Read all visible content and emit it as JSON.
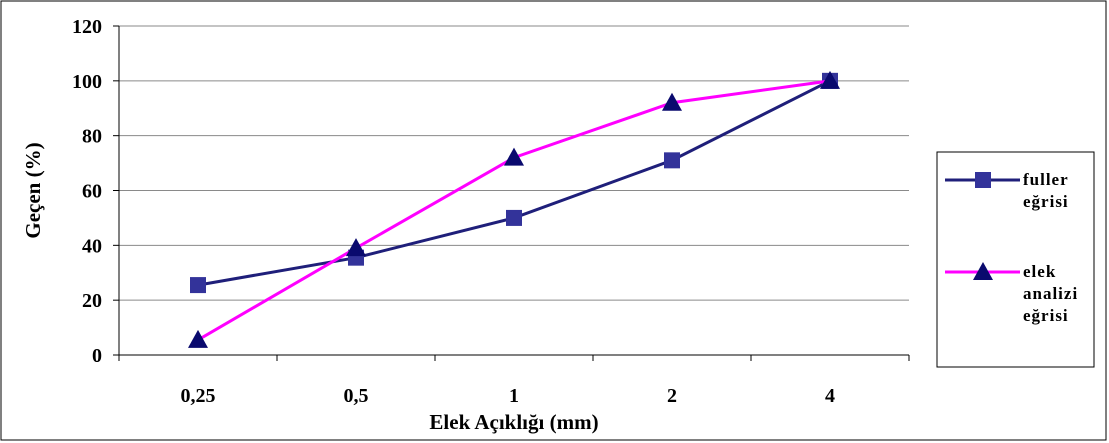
{
  "chart_data": {
    "type": "line",
    "categories": [
      "0,25",
      "0,5",
      "1",
      "2",
      "4"
    ],
    "series": [
      {
        "name_lines": [
          "fuller",
          "eğrisi"
        ],
        "values": [
          25.5,
          35.5,
          50,
          71,
          100
        ],
        "color": "#1f1f7a",
        "marker": "square",
        "marker_color": "#33339a"
      },
      {
        "name_lines": [
          "elek",
          "analizi",
          "eğrisi"
        ],
        "values": [
          5.5,
          39,
          72,
          92,
          100
        ],
        "color": "#ff00ff",
        "marker": "triangle",
        "marker_color": "#0a0a6e"
      }
    ],
    "xlabel": "Elek Açıklığı (mm)",
    "ylabel": "Geçen (%)",
    "ylim": [
      0,
      120
    ],
    "yticks": [
      0,
      20,
      40,
      60,
      80,
      100,
      120
    ],
    "grid": "horizontal",
    "legend": "right"
  }
}
